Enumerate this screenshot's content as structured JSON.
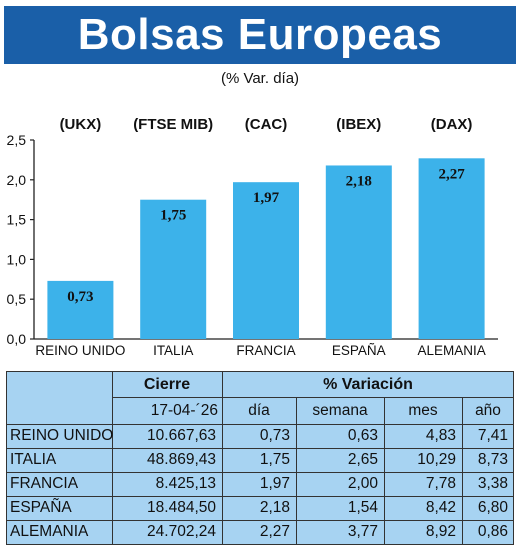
{
  "header": {
    "title": "Bolsas Europeas",
    "subtitle": "(% Var. día)"
  },
  "colors": {
    "banner": "#1a5fa8",
    "bar": "#3cb2ea",
    "table_bg": "#a7d3f2"
  },
  "chart_data": {
    "type": "bar",
    "categories": [
      "REINO UNIDO",
      "ITALIA",
      "FRANCIA",
      "ESPAÑA",
      "ALEMANIA"
    ],
    "index_labels": [
      "(UKX)",
      "(FTSE MIB)",
      "(CAC)",
      "(IBEX)",
      "(DAX)"
    ],
    "values": [
      0.73,
      1.75,
      1.97,
      2.18,
      2.27
    ],
    "value_labels": [
      "0,73",
      "1,75",
      "1,97",
      "2,18",
      "2,27"
    ],
    "y_ticks": [
      "0,0",
      "0,5",
      "1,0",
      "1,5",
      "2,0",
      "2,5"
    ],
    "ylim": [
      0,
      2.5
    ],
    "grid": false
  },
  "table": {
    "group_headers": {
      "close": "Cierre",
      "variation": "% Variación"
    },
    "col_headers": [
      "17-04-´26",
      "día",
      "semana",
      "mes",
      "año"
    ],
    "rows": [
      {
        "name": "REINO UNIDO",
        "cells": [
          "10.667,63",
          "0,73",
          "0,63",
          "4,83",
          "7,41"
        ]
      },
      {
        "name": "ITALIA",
        "cells": [
          "48.869,43",
          "1,75",
          "2,65",
          "10,29",
          "8,73"
        ]
      },
      {
        "name": "FRANCIA",
        "cells": [
          "8.425,13",
          "1,97",
          "2,00",
          "7,78",
          "3,38"
        ]
      },
      {
        "name": "ESPAÑA",
        "cells": [
          "18.484,50",
          "2,18",
          "1,54",
          "8,42",
          "6,80"
        ]
      },
      {
        "name": "ALEMANIA",
        "cells": [
          "24.702,24",
          "2,27",
          "3,77",
          "8,92",
          "0,86"
        ]
      }
    ]
  }
}
